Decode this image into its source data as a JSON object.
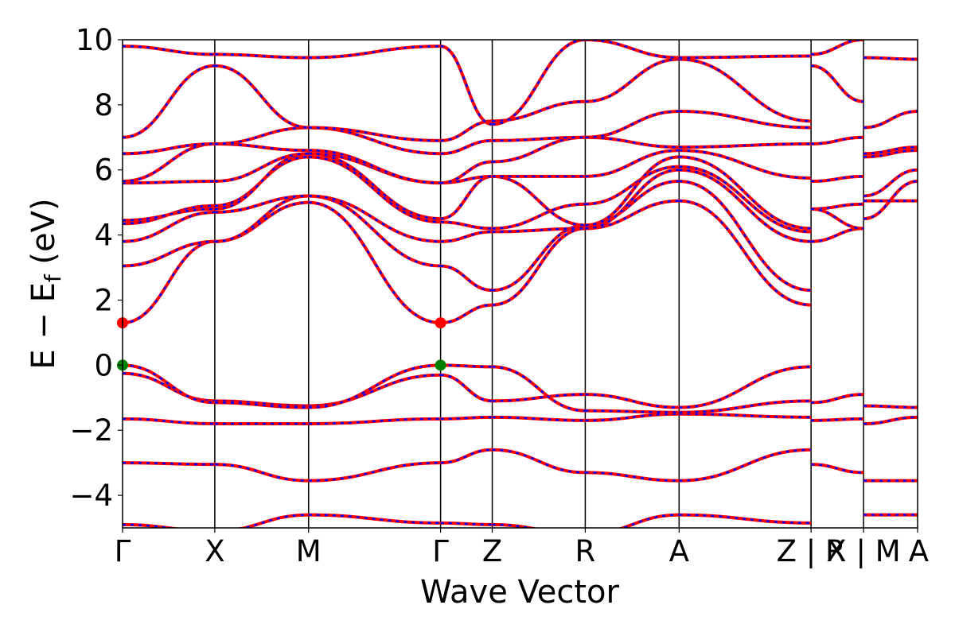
{
  "chart_data": {
    "type": "line",
    "xlabel": "Wave Vector",
    "ylabel": "E − E",
    "ylabel_sub": "f",
    "ylabel_unit": " (eV)",
    "ylim": [
      -5,
      10
    ],
    "yticks": [
      -4,
      -2,
      0,
      2,
      4,
      6,
      8,
      10
    ],
    "ytick_labels": [
      "−4",
      "−2",
      "0",
      "2",
      "4",
      "6",
      "8",
      "10"
    ],
    "grid": false,
    "k_path": [
      {
        "label": "Γ",
        "k": 0.0
      },
      {
        "label": "X",
        "k": 0.116
      },
      {
        "label": "M",
        "k": 0.234
      },
      {
        "label": "Γ",
        "k": 0.4
      },
      {
        "label": "Z",
        "k": 0.465
      },
      {
        "label": "R",
        "k": 0.582
      },
      {
        "label": "A",
        "k": 0.7
      },
      {
        "label": "Z | R",
        "k": 0.866
      },
      {
        "label": "X | M",
        "k": 0.932
      },
      {
        "label": "A",
        "k": 1.0
      }
    ],
    "k_range": [
      0,
      1
    ],
    "colors": {
      "band": "#ff0000",
      "band_overlay": "#0000ff",
      "cbm": "#ff0000",
      "vbm": "#008000"
    },
    "markers": [
      {
        "name": "CBM",
        "k": 0.0,
        "energy": 1.3
      },
      {
        "name": "CBM",
        "k": 0.4,
        "energy": 1.3
      },
      {
        "name": "VBM",
        "k": 0.0,
        "energy": 0.0
      },
      {
        "name": "VBM",
        "k": 0.4,
        "energy": 0.0
      }
    ],
    "segments": [
      {
        "name": "Gamma-X",
        "k0": 0.0,
        "k1": 0.116,
        "bands": [
          [
            -4.9,
            -5.1
          ],
          [
            -3.0,
            -3.05
          ],
          [
            -1.65,
            -1.8
          ],
          [
            -0.25,
            -1.1
          ],
          [
            0.0,
            -1.15
          ],
          [
            1.3,
            3.8
          ],
          [
            3.05,
            3.8
          ],
          [
            3.8,
            4.7
          ],
          [
            4.35,
            4.9
          ],
          [
            4.45,
            4.8
          ],
          [
            5.6,
            5.65
          ],
          [
            5.65,
            6.8
          ],
          [
            6.5,
            6.8
          ],
          [
            7.0,
            9.2
          ],
          [
            9.8,
            9.55
          ]
        ]
      },
      {
        "name": "X-M",
        "k0": 0.116,
        "k1": 0.234,
        "bands": [
          [
            -5.1,
            -4.6
          ],
          [
            -3.05,
            -3.55
          ],
          [
            -1.8,
            -1.8
          ],
          [
            -1.1,
            -1.25
          ],
          [
            -1.15,
            -1.3
          ],
          [
            3.8,
            5.0
          ],
          [
            3.8,
            5.2
          ],
          [
            4.7,
            5.2
          ],
          [
            4.9,
            6.4
          ],
          [
            4.8,
            6.5
          ],
          [
            5.65,
            6.5
          ],
          [
            6.8,
            6.6
          ],
          [
            6.8,
            7.3
          ],
          [
            9.2,
            7.3
          ],
          [
            9.55,
            9.45
          ]
        ]
      },
      {
        "name": "M-Gamma",
        "k0": 0.234,
        "k1": 0.4,
        "bands": [
          [
            -4.6,
            -4.85
          ],
          [
            -3.55,
            -3.0
          ],
          [
            -1.8,
            -1.65
          ],
          [
            -1.25,
            -0.3
          ],
          [
            -1.3,
            0.0
          ],
          [
            5.0,
            1.3
          ],
          [
            5.2,
            3.05
          ],
          [
            5.2,
            3.8
          ],
          [
            6.4,
            4.4
          ],
          [
            6.5,
            4.5
          ],
          [
            6.5,
            5.6
          ],
          [
            6.6,
            5.6
          ],
          [
            7.3,
            6.5
          ],
          [
            7.3,
            6.9
          ],
          [
            9.45,
            9.8
          ]
        ]
      },
      {
        "name": "Gamma-Z",
        "k0": 0.4,
        "k1": 0.465,
        "bands": [
          [
            -4.85,
            -4.9
          ],
          [
            -3.0,
            -2.6
          ],
          [
            -1.65,
            -1.6
          ],
          [
            -0.3,
            -1.1
          ],
          [
            0.0,
            -0.05
          ],
          [
            1.3,
            1.85
          ],
          [
            3.05,
            2.3
          ],
          [
            3.8,
            4.1
          ],
          [
            4.4,
            4.2
          ],
          [
            4.5,
            5.8
          ],
          [
            5.6,
            5.8
          ],
          [
            5.6,
            6.25
          ],
          [
            6.5,
            6.9
          ],
          [
            6.9,
            7.5
          ],
          [
            9.8,
            7.4
          ]
        ]
      },
      {
        "name": "Z-R",
        "k0": 0.465,
        "k1": 0.582,
        "bands": [
          [
            -4.9,
            -5.2
          ],
          [
            -2.6,
            -3.3
          ],
          [
            -1.6,
            -1.7
          ],
          [
            -1.1,
            -0.9
          ],
          [
            -0.05,
            -1.4
          ],
          [
            1.85,
            4.2
          ],
          [
            2.3,
            4.3
          ],
          [
            4.1,
            4.2
          ],
          [
            4.2,
            4.95
          ],
          [
            5.8,
            4.3
          ],
          [
            5.8,
            5.8
          ],
          [
            6.25,
            7.0
          ],
          [
            6.9,
            7.0
          ],
          [
            7.5,
            8.1
          ],
          [
            7.4,
            10.0
          ]
        ]
      },
      {
        "name": "R-A",
        "k0": 0.582,
        "k1": 0.7,
        "bands": [
          [
            -5.2,
            -4.6
          ],
          [
            -3.3,
            -3.55
          ],
          [
            -1.7,
            -1.5
          ],
          [
            -0.9,
            -1.3
          ],
          [
            -1.4,
            -1.45
          ],
          [
            4.2,
            5.05
          ],
          [
            4.3,
            5.65
          ],
          [
            4.2,
            6.0
          ],
          [
            4.95,
            6.1
          ],
          [
            4.3,
            6.4
          ],
          [
            5.8,
            6.6
          ],
          [
            7.0,
            6.7
          ],
          [
            7.0,
            7.8
          ],
          [
            8.1,
            9.4
          ],
          [
            10.0,
            9.45
          ]
        ]
      },
      {
        "name": "A-Z",
        "k0": 0.7,
        "k1": 0.866,
        "bands": [
          [
            -4.6,
            -4.85
          ],
          [
            -3.55,
            -2.6
          ],
          [
            -1.5,
            -1.6
          ],
          [
            -1.3,
            -0.05
          ],
          [
            -1.45,
            -1.1
          ],
          [
            5.05,
            1.85
          ],
          [
            5.65,
            2.3
          ],
          [
            6.0,
            3.8
          ],
          [
            6.1,
            4.1
          ],
          [
            6.4,
            4.2
          ],
          [
            6.6,
            5.75
          ],
          [
            6.7,
            6.8
          ],
          [
            7.8,
            7.3
          ],
          [
            9.4,
            7.5
          ],
          [
            9.45,
            9.5
          ]
        ]
      },
      {
        "name": "R-X",
        "k0": 0.866,
        "k1": 0.932,
        "bands": [
          [
            -3.05,
            -3.3
          ],
          [
            -1.7,
            -1.65
          ],
          [
            -1.15,
            -0.9
          ],
          [
            3.8,
            4.2
          ],
          [
            4.8,
            4.95
          ],
          [
            4.8,
            4.2
          ],
          [
            5.65,
            5.8
          ],
          [
            6.8,
            7.0
          ],
          [
            9.2,
            8.1
          ],
          [
            9.55,
            10.0
          ]
        ]
      },
      {
        "name": "M-A",
        "k0": 0.932,
        "k1": 1.0,
        "bands": [
          [
            -4.6,
            -4.6
          ],
          [
            -3.55,
            -3.55
          ],
          [
            -1.8,
            -1.6
          ],
          [
            -1.25,
            -1.3
          ],
          [
            4.5,
            5.65
          ],
          [
            5.05,
            5.05
          ],
          [
            5.2,
            6.0
          ],
          [
            6.4,
            6.6
          ],
          [
            6.5,
            6.7
          ],
          [
            7.3,
            7.8
          ],
          [
            9.45,
            9.4
          ]
        ]
      }
    ]
  }
}
